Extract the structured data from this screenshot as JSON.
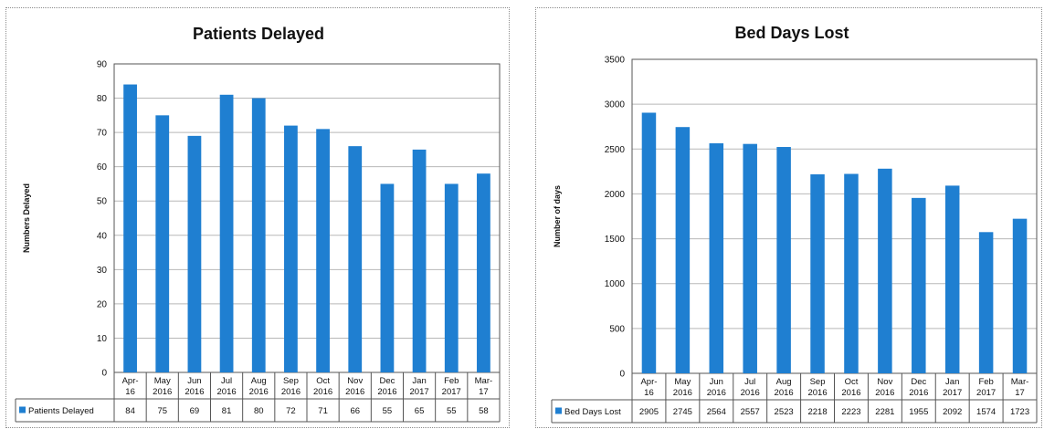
{
  "chart_data": [
    {
      "type": "bar",
      "title": "Patients Delayed",
      "ylabel": "Numbers Delayed",
      "xlabel": "",
      "ylim": [
        0,
        90
      ],
      "yticks": [
        0,
        10,
        20,
        30,
        40,
        50,
        60,
        70,
        80,
        90
      ],
      "grid": true,
      "legend": "bottom-left in data table",
      "categories": [
        [
          "Apr-",
          "16"
        ],
        [
          "May",
          "2016"
        ],
        [
          "Jun",
          "2016"
        ],
        [
          "Jul",
          "2016"
        ],
        [
          "Aug",
          "2016"
        ],
        [
          "Sep",
          "2016"
        ],
        [
          "Oct",
          "2016"
        ],
        [
          "Nov",
          "2016"
        ],
        [
          "Dec",
          "2016"
        ],
        [
          "Jan",
          "2017"
        ],
        [
          "Feb",
          "2017"
        ],
        [
          "Mar-",
          "17"
        ]
      ],
      "series": [
        {
          "name": "Patients Delayed",
          "color": "#1f7fd1",
          "values": [
            84,
            75,
            69,
            81,
            80,
            72,
            71,
            66,
            55,
            65,
            55,
            58
          ]
        }
      ]
    },
    {
      "type": "bar",
      "title": "Bed Days Lost",
      "ylabel": "Number of days",
      "xlabel": "",
      "ylim": [
        0,
        3500
      ],
      "yticks": [
        0,
        500,
        1000,
        1500,
        2000,
        2500,
        3000,
        3500
      ],
      "grid": true,
      "legend": "bottom-left in data table",
      "categories": [
        [
          "Apr-",
          "16"
        ],
        [
          "May",
          "2016"
        ],
        [
          "Jun",
          "2016"
        ],
        [
          "Jul",
          "2016"
        ],
        [
          "Aug",
          "2016"
        ],
        [
          "Sep",
          "2016"
        ],
        [
          "Oct",
          "2016"
        ],
        [
          "Nov",
          "2016"
        ],
        [
          "Dec",
          "2016"
        ],
        [
          "Jan",
          "2017"
        ],
        [
          "Feb",
          "2017"
        ],
        [
          "Mar-",
          "17"
        ]
      ],
      "series": [
        {
          "name": "Bed Days Lost",
          "color": "#1f7fd1",
          "values": [
            2905,
            2745,
            2564,
            2557,
            2523,
            2218,
            2223,
            2281,
            1955,
            2092,
            1574,
            1723
          ]
        }
      ]
    }
  ]
}
